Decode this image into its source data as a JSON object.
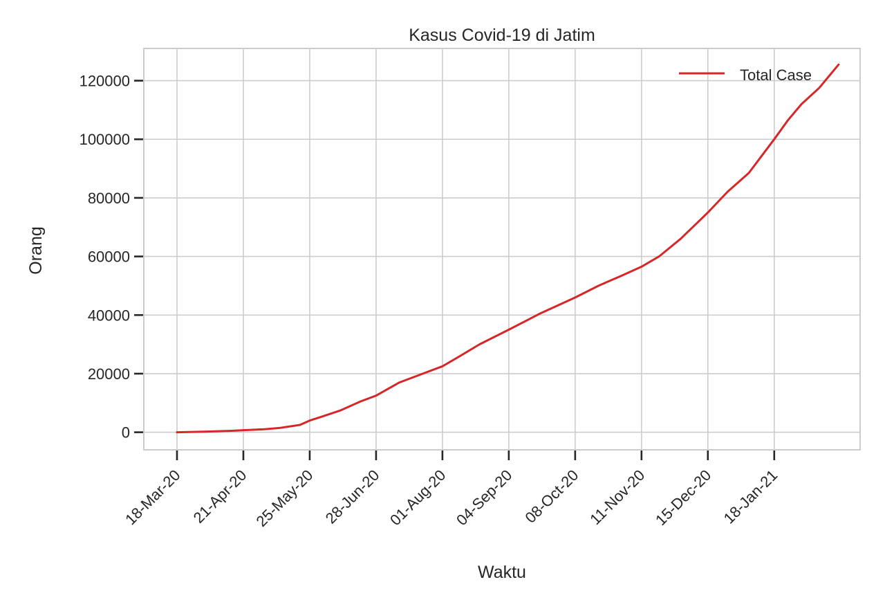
{
  "chart_data": {
    "type": "line",
    "title": "Kasus Covid-19 di Jatim",
    "xlabel": "Waktu",
    "ylabel": "Orang",
    "x_tick_labels": [
      "18-Mar-20",
      "21-Apr-20",
      "25-May-20",
      "28-Jun-20",
      "01-Aug-20",
      "04-Sep-20",
      "08-Oct-20",
      "11-Nov-20",
      "15-Dec-20",
      "18-Jan-21"
    ],
    "x_tick_dates": [
      "2020-03-18",
      "2020-04-21",
      "2020-05-25",
      "2020-06-28",
      "2020-08-01",
      "2020-09-04",
      "2020-10-08",
      "2020-11-11",
      "2020-12-15",
      "2021-01-18"
    ],
    "y_ticks": [
      0,
      20000,
      40000,
      60000,
      80000,
      100000,
      120000
    ],
    "y_tick_labels": [
      "0",
      "20000",
      "40000",
      "60000",
      "80000",
      "100000",
      "120000"
    ],
    "xlim": [
      "2020-03-01",
      "2021-03-03"
    ],
    "ylim": [
      -6000,
      131000
    ],
    "grid": true,
    "legend_position": "top-right",
    "colors": {
      "line": "#d62728",
      "grid": "#cccccc",
      "text": "#262626"
    },
    "series": [
      {
        "name": "Total Case",
        "color": "#d62728",
        "x": [
          "2020-03-18",
          "2020-04-01",
          "2020-04-15",
          "2020-04-21",
          "2020-05-01",
          "2020-05-10",
          "2020-05-20",
          "2020-05-25",
          "2020-06-01",
          "2020-06-10",
          "2020-06-20",
          "2020-06-28",
          "2020-07-10",
          "2020-07-20",
          "2020-08-01",
          "2020-08-10",
          "2020-08-20",
          "2020-09-04",
          "2020-09-20",
          "2020-10-08",
          "2020-10-20",
          "2020-11-01",
          "2020-11-11",
          "2020-11-20",
          "2020-12-01",
          "2020-12-15",
          "2020-12-25",
          "2021-01-05",
          "2021-01-18",
          "2021-01-25",
          "2021-02-01",
          "2021-02-10",
          "2021-02-20"
        ],
        "y": [
          0,
          200,
          500,
          700,
          1000,
          1500,
          2500,
          4000,
          5500,
          7500,
          10500,
          12500,
          17000,
          19500,
          22500,
          26000,
          30000,
          35000,
          40500,
          46000,
          50000,
          53500,
          56500,
          60000,
          66000,
          75000,
          82000,
          88500,
          100000,
          106500,
          112000,
          117500,
          125500
        ]
      }
    ]
  }
}
